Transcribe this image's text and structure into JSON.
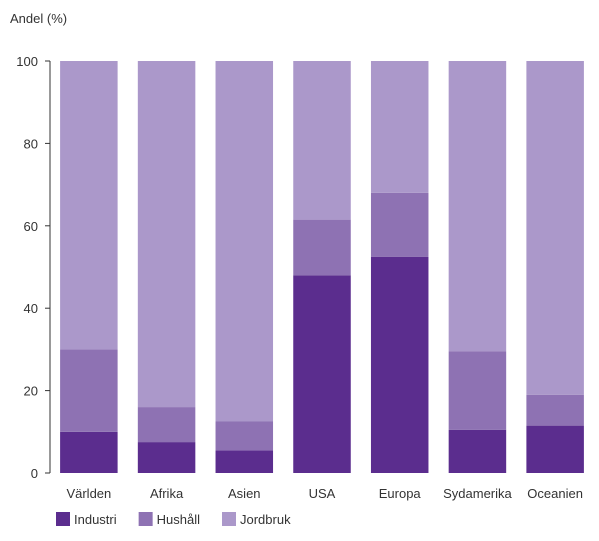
{
  "chart_data": {
    "type": "bar",
    "stacked": true,
    "title": "",
    "xlabel": "",
    "ylabel": "Andel (%)",
    "ylim": [
      0,
      100
    ],
    "yticks": [
      0,
      20,
      40,
      60,
      80,
      100
    ],
    "grid": false,
    "legend_position": "bottom-left",
    "categories": [
      "Världen",
      "Afrika",
      "Asien",
      "USA",
      "Europa",
      "Sydamerika",
      "Oceanien"
    ],
    "series": [
      {
        "name": "Industri",
        "color": "#5b2d8e",
        "values": [
          10,
          7.5,
          5.5,
          48,
          52.5,
          10.5,
          11.5
        ]
      },
      {
        "name": "Hushåll",
        "color": "#8e72b3",
        "values": [
          20,
          8.5,
          7,
          13.5,
          15.5,
          19,
          7.5
        ]
      },
      {
        "name": "Jordbruk",
        "color": "#ab98ca",
        "values": [
          70,
          84,
          87.5,
          38.5,
          32,
          70.5,
          81
        ]
      }
    ]
  }
}
